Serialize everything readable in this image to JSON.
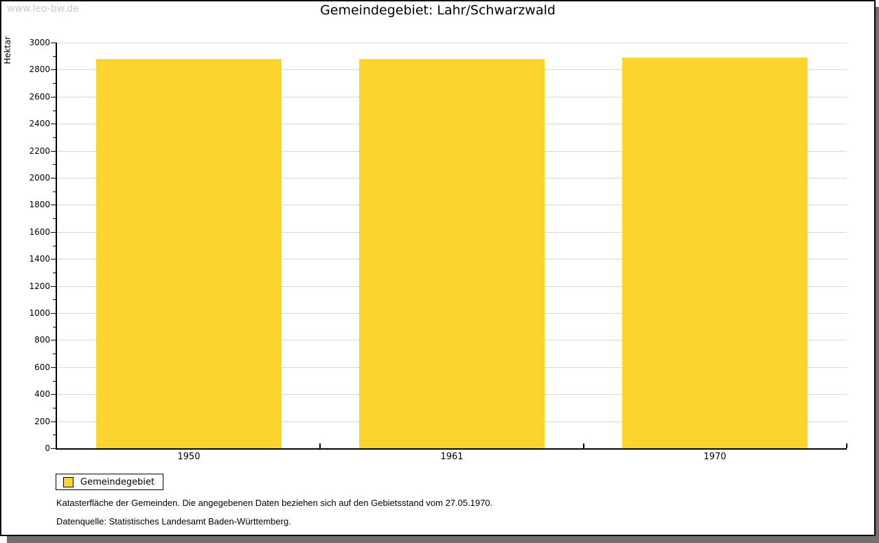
{
  "watermark": "www.leo-bw.de",
  "title": "Gemeindegebiet: Lahr/Schwarzwald",
  "chart_data": {
    "type": "bar",
    "title": "Gemeindegebiet: Lahr/Schwarzwald",
    "categories": [
      "1950",
      "1961",
      "1970"
    ],
    "series": [
      {
        "name": "Gemeindegebiet",
        "values": [
          2880,
          2880,
          2890
        ]
      }
    ],
    "xlabel": "",
    "ylabel": "Hektar",
    "ylim": [
      0,
      3000
    ],
    "ytick_major": 200,
    "ytick_minor": 100,
    "grid": true,
    "legend_position": "bottom-left"
  },
  "legend": {
    "label": "Gemeindegebiet",
    "swatch_color": "#FCD42E"
  },
  "footnotes": [
    "Katasterfläche der Gemeinden. Die angegebenen Daten beziehen sich auf den Gebietsstand vom 27.05.1970.",
    "Datenquelle: Statistisches Landesamt Baden-Württemberg."
  ],
  "colors": {
    "bar": "#FCD42E",
    "grid": "#D6D6D6",
    "axis": "#000000",
    "watermark": "#C9C9C9",
    "shadow": "#707070"
  }
}
